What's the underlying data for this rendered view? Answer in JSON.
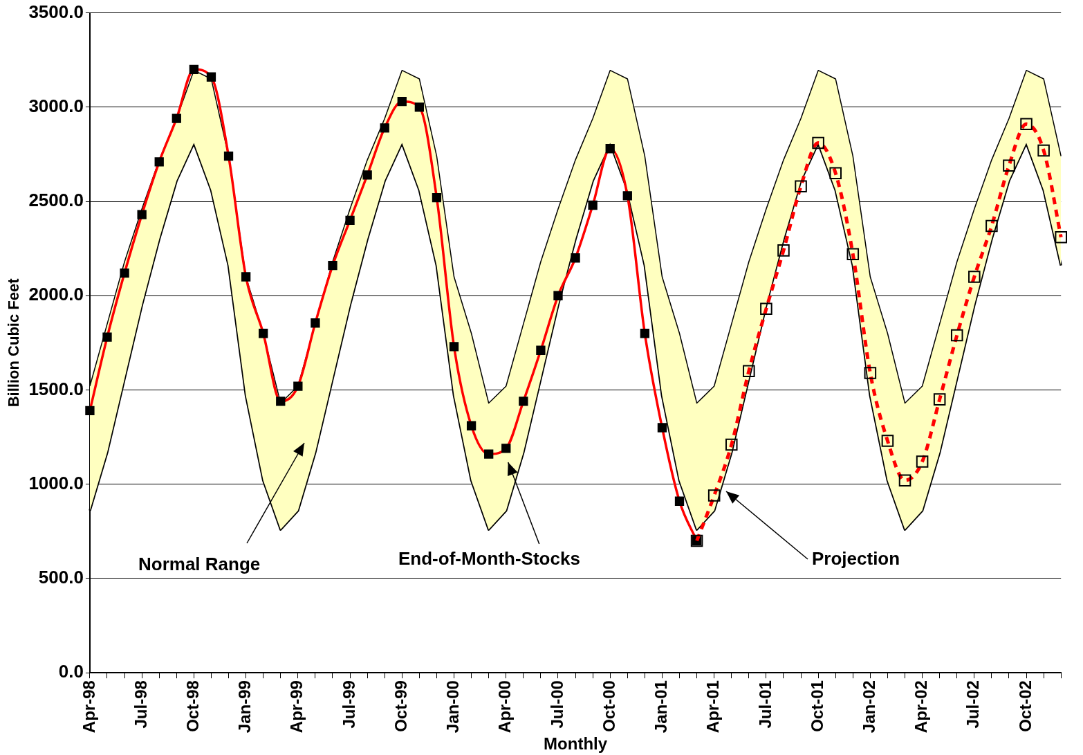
{
  "chart_data": {
    "type": "line",
    "xlabel": "Monthly",
    "ylabel": "Billion Cubic Feet",
    "categories": [
      "Apr-98",
      null,
      null,
      "Jul-98",
      null,
      null,
      "Oct-98",
      null,
      null,
      "Jan-99",
      null,
      null,
      "Apr-99",
      null,
      null,
      "Jul-99",
      null,
      null,
      "Oct-99",
      null,
      null,
      "Jan-00",
      null,
      null,
      "Apr-00",
      null,
      null,
      "Jul-00",
      null,
      null,
      "Oct-00",
      null,
      null,
      "Jan-01",
      null,
      null,
      "Apr-01",
      null,
      null,
      "Jul-01",
      null,
      null,
      "Oct-01",
      null,
      null,
      "Jan-02",
      null,
      null,
      "Apr-02",
      null,
      null,
      "Jul-02",
      null,
      null,
      "Oct-02",
      null,
      null
    ],
    "series": [
      {
        "color": "#000000",
        "marker": "none",
        "line_style": "solid",
        "values": [
          860,
          1170,
          1560,
          1950,
          2300,
          2610,
          2810,
          2560,
          2160,
          1470,
          1020,
          760,
          860,
          1170,
          1560,
          1950,
          2300,
          2610,
          2810,
          2560,
          2160,
          1470,
          1020,
          760,
          860,
          1170,
          1560,
          1950,
          2300,
          2610,
          2810,
          2560,
          2160,
          1470,
          1020,
          760,
          860,
          1170,
          1560,
          1950,
          2300,
          2610,
          2810,
          2560,
          2160,
          1470,
          1020,
          760,
          860,
          1170,
          1560,
          1950,
          2300,
          2610,
          2810,
          2560,
          2160
        ]
      },
      {
        "type": "area",
        "color": "#ffffc0",
        "marker": "none",
        "line_style": "solid",
        "values": [
          1520,
          1850,
          2180,
          2460,
          2720,
          2940,
          3195,
          3150,
          2740,
          2100,
          1800,
          1430,
          1520,
          1850,
          2180,
          2460,
          2720,
          2940,
          3195,
          3150,
          2740,
          2100,
          1800,
          1430,
          1520,
          1850,
          2180,
          2460,
          2720,
          2940,
          3195,
          3150,
          2740,
          2100,
          1800,
          1430,
          1520,
          1850,
          2180,
          2460,
          2720,
          2940,
          3195,
          3150,
          2740,
          2100,
          1800,
          1430,
          1520,
          1850,
          2180,
          2460,
          2720,
          2940,
          3195,
          3150,
          2740
        ]
      },
      {
        "color": "#ff0000",
        "marker": "square",
        "line_style": "solid",
        "values": [
          1390,
          1780,
          2120,
          2430,
          2710,
          2940,
          3200,
          3160,
          2740,
          2100,
          1800,
          1440,
          1520,
          1855,
          2160,
          2400,
          2640,
          2890,
          3030,
          3000,
          2520,
          1730,
          1310,
          1160,
          1190,
          1440,
          1710,
          2000,
          2200,
          2480,
          2780,
          2530,
          1800,
          1300,
          910,
          700,
          null,
          null,
          null,
          null,
          null,
          null,
          null,
          null,
          null,
          null,
          null,
          null,
          null,
          null,
          null,
          null,
          null,
          null,
          null,
          null,
          null
        ]
      },
      {
        "color": "#ff0000",
        "marker": "square",
        "line_style": "dashed",
        "values": [
          null,
          null,
          null,
          null,
          null,
          null,
          null,
          null,
          null,
          null,
          null,
          null,
          null,
          null,
          null,
          null,
          null,
          null,
          null,
          null,
          null,
          null,
          null,
          null,
          null,
          null,
          null,
          null,
          null,
          null,
          null,
          null,
          null,
          null,
          null,
          700,
          940,
          1210,
          1600,
          1930,
          2240,
          2580,
          2810,
          2650,
          2220,
          1590,
          1230,
          1020,
          1120,
          1450,
          1790,
          2100,
          2370,
          2690,
          2910,
          2770,
          2310
        ]
      }
    ],
    "ylim": [
      0,
      3500
    ],
    "yticks": [
      {
        "value": 0,
        "label": "0.0"
      },
      {
        "value": 500,
        "label": "500.0"
      },
      {
        "value": 1000,
        "label": "1000.0"
      },
      {
        "value": 1500,
        "label": "1500.0"
      },
      {
        "value": 2000,
        "label": "2000.0"
      },
      {
        "value": 2500,
        "label": "2500.0"
      },
      {
        "value": 3000,
        "label": "3000.0"
      },
      {
        "value": 3500,
        "label": "3500.0"
      }
    ],
    "grid": "y",
    "legend": false,
    "annotations": [
      "Normal Range",
      "End-of-Month-Stocks",
      "Projection"
    ]
  }
}
